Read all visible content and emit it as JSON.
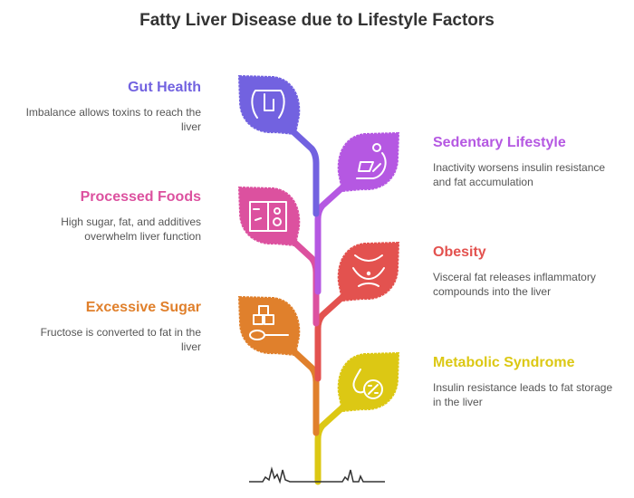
{
  "title": "Fatty Liver Disease due to Lifestyle Factors",
  "factors": [
    {
      "title": "Gut Health",
      "description": "Imbalance allows toxins to reach the liver",
      "color": "#7262e0",
      "icon": "intestine-icon",
      "side": "left"
    },
    {
      "title": "Sedentary Lifestyle",
      "description": "Inactivity worsens insulin resistance and fat accumulation",
      "color": "#b558e2",
      "icon": "person-reclining-laptop-icon",
      "side": "right"
    },
    {
      "title": "Processed Foods",
      "description": "High sugar, fat, and additives overwhelm liver function",
      "color": "#dc519f",
      "icon": "packaged-food-icon",
      "side": "left"
    },
    {
      "title": "Obesity",
      "description": "Visceral fat releases inflammatory compounds into the liver",
      "color": "#e3524f",
      "icon": "torso-belly-icon",
      "side": "right"
    },
    {
      "title": "Excessive Sugar",
      "description": "Fructose is converted to fat in the liver",
      "color": "#e0802c",
      "icon": "sugar-cubes-spoon-icon",
      "side": "left"
    },
    {
      "title": "Metabolic Syndrome",
      "description": "Insulin resistance leads to fat storage in the liver",
      "color": "#dcc814",
      "icon": "drop-percent-icon",
      "side": "right"
    }
  ]
}
